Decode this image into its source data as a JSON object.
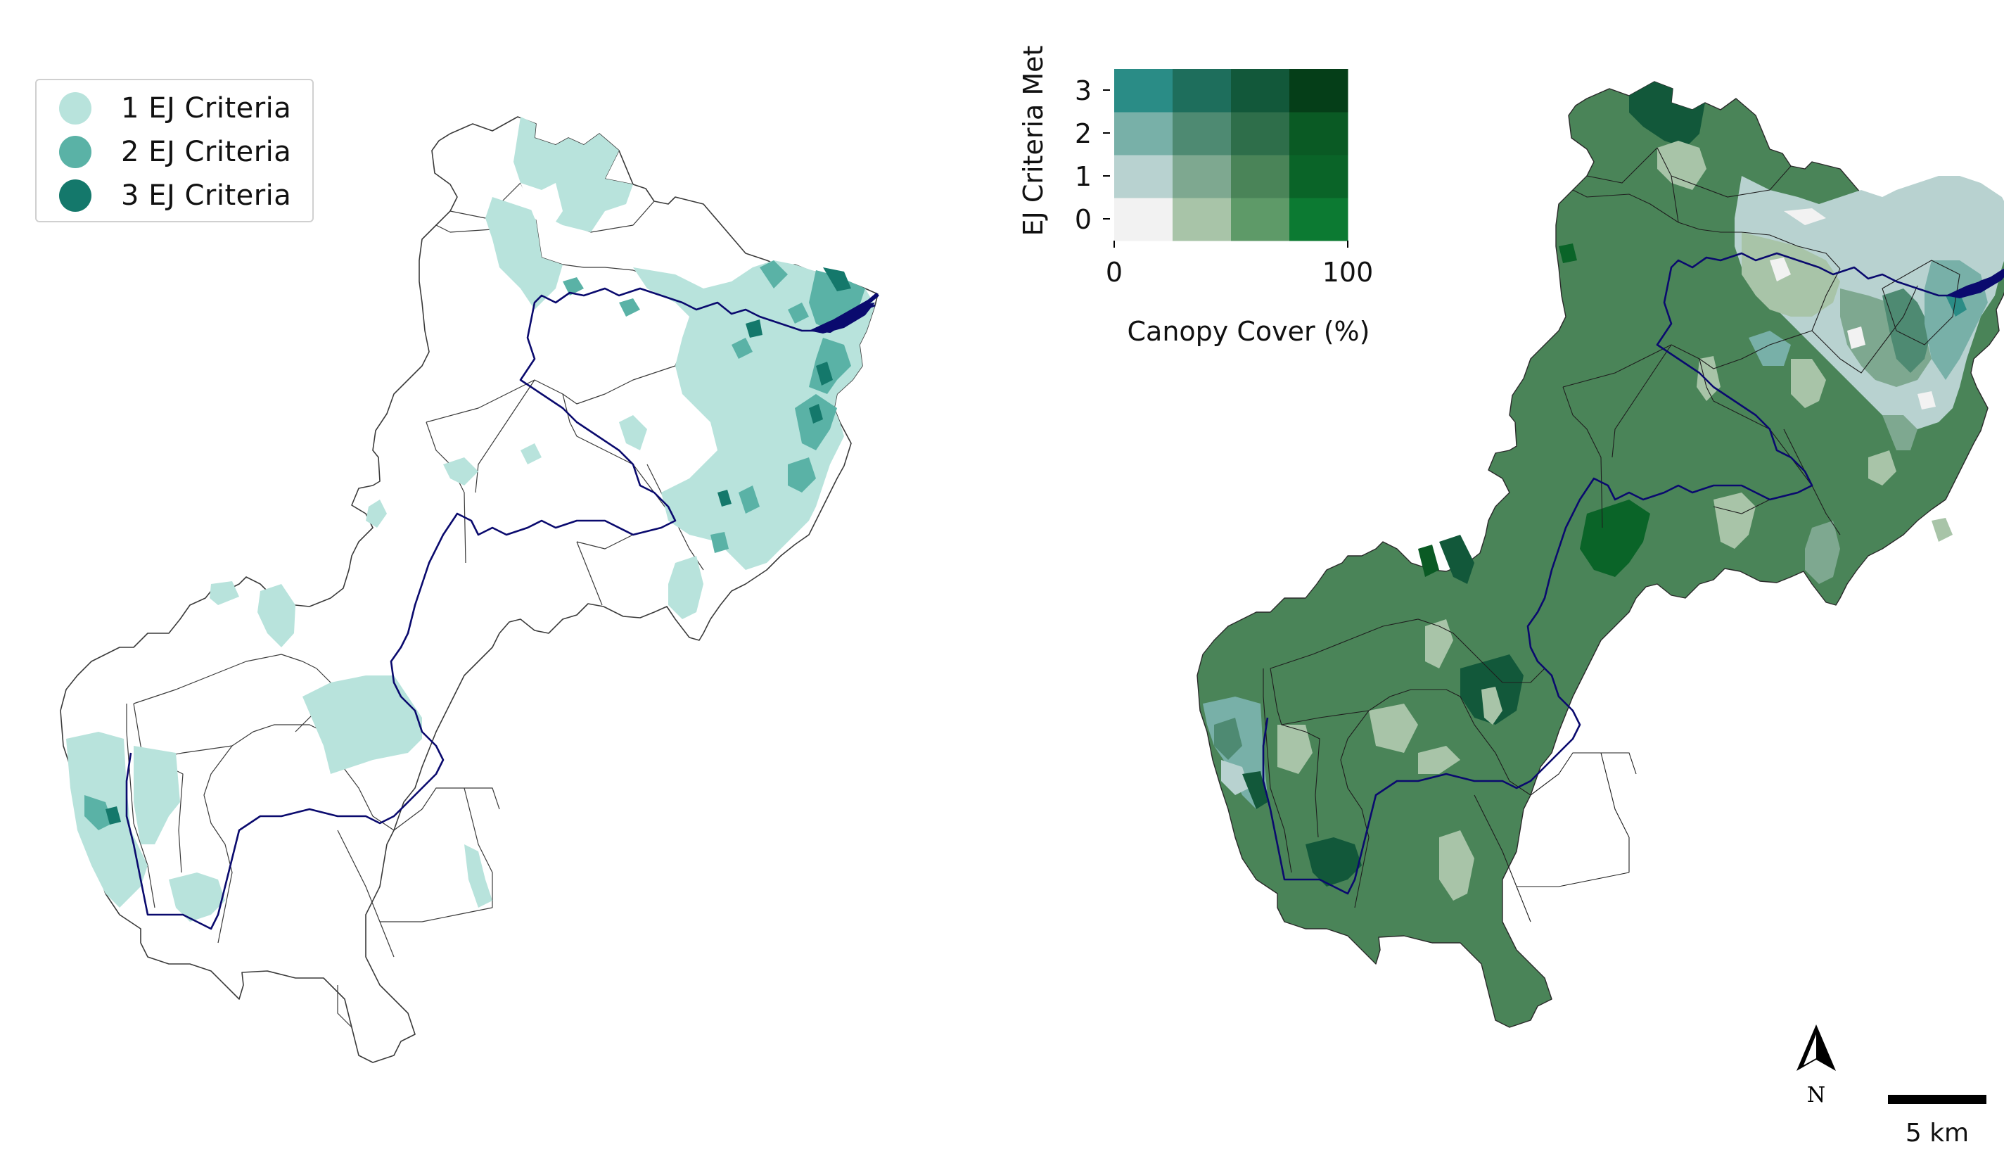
{
  "left_map": {
    "legend": {
      "items": [
        {
          "label": "1 EJ Criteria",
          "color": "#b8e3dc"
        },
        {
          "label": "2 EJ Criteria",
          "color": "#5ab2a6"
        },
        {
          "label": "3 EJ Criteria",
          "color": "#14786b"
        }
      ]
    },
    "river_color": "#0a0a6e"
  },
  "right_map": {
    "river_color": "#0a0a6e",
    "bivariate_legend": {
      "ylabel": "EJ Criteria Met",
      "xlabel": "Canopy Cover (%)",
      "y_ticks": [
        "0",
        "1",
        "2",
        "3"
      ],
      "x_ticks": [
        "0",
        "100"
      ],
      "grid_colors": [
        [
          "#f2f2f2",
          "#a8c4a8",
          "#5e9a68",
          "#0c7a32"
        ],
        [
          "#b8d2d0",
          "#7ea890",
          "#4a8458",
          "#0a6428"
        ],
        [
          "#78b0a8",
          "#4e8a72",
          "#2e6e4a",
          "#0a5a24"
        ],
        [
          "#2a8c86",
          "#1e6e5c",
          "#12583a",
          "#053e18"
        ]
      ]
    }
  },
  "north_arrow": {
    "label": "N",
    "icon": "north-arrow-icon"
  },
  "scale_bar": {
    "label": "5 km"
  }
}
